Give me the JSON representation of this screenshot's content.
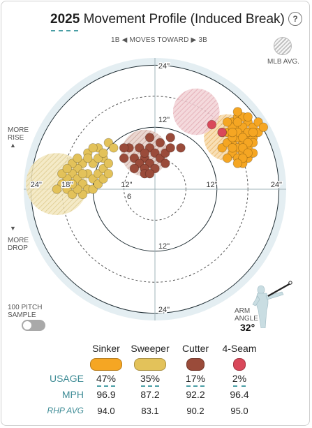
{
  "header": {
    "year": "2025",
    "title": "Movement Profile (Induced Break)",
    "help_label": "?"
  },
  "direction": {
    "left_label": "1B",
    "middle_label": "MOVES TOWARD",
    "right_label": "3B"
  },
  "legend": {
    "mlb_avg_label": "MLB AVG."
  },
  "side_labels": {
    "more_rise_line1": "MORE",
    "more_rise_line2": "RISE",
    "more_drop_line1": "MORE",
    "more_drop_line2": "DROP"
  },
  "toggle": {
    "label_line1": "100 PITCH",
    "label_line2": "SAMPLE",
    "on": false
  },
  "arm_angle": {
    "label_line1": "ARM",
    "label_line2": "ANGLE",
    "value": "32°",
    "degrees": 32
  },
  "colors": {
    "sinker": "#f5a623",
    "sweeper": "#e3c25a",
    "cutter": "#9a4b3a",
    "four_seam": "#d9485a",
    "accent": "#4a9ea5",
    "plot_bg": "#e4eef2"
  },
  "chart_data": {
    "type": "scatter",
    "units": "inches",
    "x_axis_ticks": [
      "24\"",
      "18\"",
      "12\"",
      "6",
      "6",
      "12\"",
      "24\""
    ],
    "y_axis_ticks": [
      "24\"",
      "12\"",
      "12\"",
      "24\""
    ],
    "rings": [
      6,
      12,
      18,
      24
    ],
    "xlim": [
      -30,
      30
    ],
    "ylim": [
      -30,
      30
    ],
    "series": [
      {
        "name": "Sinker",
        "color": "#f5a623",
        "mlb_avg": {
          "x": 14,
          "y": 10,
          "r": 4.5
        },
        "points": [
          [
            16,
            12
          ],
          [
            17,
            11.5
          ],
          [
            18,
            13
          ],
          [
            15,
            13
          ],
          [
            19,
            12
          ],
          [
            16,
            14
          ],
          [
            17,
            9
          ],
          [
            18,
            10
          ],
          [
            15,
            9
          ],
          [
            16,
            8
          ],
          [
            19,
            10
          ],
          [
            18,
            8
          ],
          [
            20,
            11
          ],
          [
            14,
            11
          ],
          [
            17,
            14
          ],
          [
            15,
            12
          ],
          [
            18,
            14
          ],
          [
            16,
            10
          ],
          [
            17,
            7
          ],
          [
            18,
            6
          ],
          [
            15,
            7
          ],
          [
            16,
            6
          ],
          [
            17,
            5
          ],
          [
            14,
            6
          ],
          [
            13,
            8
          ],
          [
            19,
            7
          ],
          [
            20,
            13
          ],
          [
            21,
            12
          ],
          [
            14,
            9
          ],
          [
            17,
            12
          ],
          [
            16,
            11
          ],
          [
            18,
            11
          ],
          [
            15,
            10
          ],
          [
            17,
            10
          ],
          [
            16,
            13
          ],
          [
            19,
            9
          ],
          [
            18,
            9
          ],
          [
            15,
            11
          ],
          [
            17,
            8
          ],
          [
            13,
            11
          ],
          [
            16,
            15
          ],
          [
            14,
            13
          ],
          [
            18,
            7
          ],
          [
            19,
            11
          ],
          [
            17,
            6
          ],
          [
            16,
            5
          ],
          [
            15,
            8
          ]
        ]
      },
      {
        "name": "Sweeper",
        "color": "#e3c25a",
        "mlb_avg": {
          "x": -19,
          "y": 1,
          "r": 6
        },
        "points": [
          [
            -9,
            9
          ],
          [
            -11,
            8
          ],
          [
            -10,
            6
          ],
          [
            -13,
            7
          ],
          [
            -12,
            5
          ],
          [
            -14,
            5
          ],
          [
            -15,
            4
          ],
          [
            -13,
            3
          ],
          [
            -16,
            3
          ],
          [
            -17,
            2
          ],
          [
            -15,
            2
          ],
          [
            -14,
            1
          ],
          [
            -17,
            0
          ],
          [
            -18,
            1
          ],
          [
            -16,
            -1
          ],
          [
            -19,
            0
          ],
          [
            -12,
            2
          ],
          [
            -11,
            3
          ],
          [
            -10,
            4
          ],
          [
            -13,
            0
          ],
          [
            -14,
            -1
          ],
          [
            -12,
            0
          ],
          [
            -9,
            5
          ],
          [
            -11,
            1
          ],
          [
            -15,
            0
          ],
          [
            -18,
            3
          ],
          [
            -16,
            5
          ],
          [
            -10,
            2
          ],
          [
            -13,
            6
          ],
          [
            -12,
            8
          ],
          [
            -8,
            8
          ],
          [
            -14,
            3
          ],
          [
            -17,
            4
          ],
          [
            -11,
            6
          ],
          [
            -9,
            3
          ],
          [
            -15,
            6
          ],
          [
            -16,
            1
          ],
          [
            -10,
            7
          ]
        ]
      },
      {
        "name": "Cutter",
        "color": "#9a4b3a",
        "mlb_avg": {
          "x": -2,
          "y": 7,
          "r": 4.5
        },
        "points": [
          [
            -5,
            8
          ],
          [
            -3,
            8
          ],
          [
            -1,
            8
          ],
          [
            -4,
            6
          ],
          [
            -2,
            6
          ],
          [
            0,
            7
          ],
          [
            -3,
            5
          ],
          [
            -1,
            5
          ],
          [
            -2,
            4
          ],
          [
            0,
            4
          ],
          [
            -4,
            4
          ],
          [
            1,
            6
          ],
          [
            2,
            5
          ],
          [
            -6,
            6
          ],
          [
            1,
            9
          ],
          [
            2,
            7
          ],
          [
            3,
            8
          ],
          [
            -1,
            10
          ],
          [
            3,
            10
          ],
          [
            5,
            8
          ],
          [
            -2,
            3
          ],
          [
            -1,
            3
          ],
          [
            -6,
            8
          ],
          [
            -2,
            7
          ]
        ]
      },
      {
        "name": "4-Seam",
        "color": "#d9485a",
        "mlb_avg": {
          "x": 8,
          "y": 15,
          "r": 4.5
        },
        "points": [
          [
            11,
            12.5
          ],
          [
            13,
            11
          ]
        ]
      }
    ]
  },
  "pitch_table": {
    "row_labels": {
      "usage": "USAGE",
      "mph": "MPH",
      "rhp_avg": "RHP AVG"
    },
    "pitches": [
      {
        "name": "Sinker",
        "usage": "47%",
        "mph": "96.9",
        "rhp_avg": "94.0"
      },
      {
        "name": "Sweeper",
        "usage": "35%",
        "mph": "87.2",
        "rhp_avg": "83.1"
      },
      {
        "name": "Cutter",
        "usage": "17%",
        "mph": "92.2",
        "rhp_avg": "90.2"
      },
      {
        "name": "4-Seam",
        "usage": "2%",
        "mph": "96.4",
        "rhp_avg": "95.0"
      }
    ]
  }
}
